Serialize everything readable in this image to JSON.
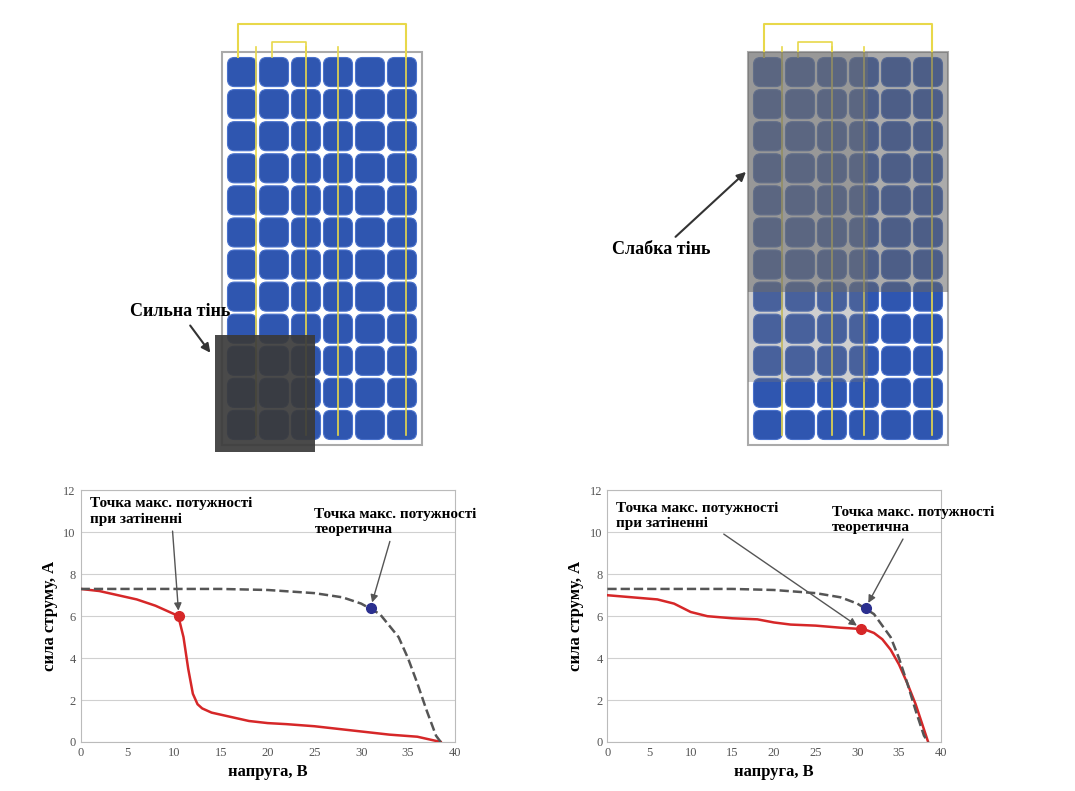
{
  "panels": [
    {
      "label": "Сильна тінь"
    },
    {
      "label": "Слабка тінь"
    }
  ],
  "chart_data": [
    {
      "type": "line",
      "x_label": "напруга, В",
      "y_label": "сила струму, А",
      "xlim": [
        0,
        40
      ],
      "xticks": [
        0,
        5,
        10,
        15,
        20,
        25,
        30,
        35,
        40
      ],
      "ylim": [
        0,
        12
      ],
      "yticks": [
        0,
        2,
        4,
        6,
        8,
        10,
        12
      ],
      "grid": true,
      "series": [
        {
          "color": "#d62728",
          "line_style": "solid",
          "x": [
            0,
            2,
            4,
            6,
            8,
            10,
            10.5,
            11,
            11.5,
            12,
            12.5,
            13,
            14,
            16,
            18,
            20,
            22,
            25,
            28,
            30,
            33,
            36,
            38,
            38.5
          ],
          "values": [
            7.3,
            7.2,
            7.0,
            6.8,
            6.5,
            6.1,
            5.9,
            5.0,
            3.5,
            2.3,
            1.8,
            1.6,
            1.4,
            1.2,
            1.0,
            0.9,
            0.85,
            0.75,
            0.6,
            0.5,
            0.35,
            0.25,
            0.05,
            0.0
          ]
        },
        {
          "color": "#555555",
          "line_style": "dashed",
          "x": [
            0,
            5,
            10,
            15,
            20,
            25,
            28,
            30,
            32,
            34,
            35,
            36,
            37,
            38,
            38.5
          ],
          "values": [
            7.3,
            7.3,
            7.3,
            7.3,
            7.25,
            7.1,
            6.9,
            6.6,
            6.1,
            5.0,
            4.0,
            2.8,
            1.5,
            0.3,
            0.0
          ]
        }
      ],
      "annotations": [
        {
          "text": "Точка макс. потужності\nпри затіненні",
          "x": 10.5,
          "y": 6.0,
          "color": "#d62728"
        },
        {
          "text": "Точка макс. потужності\nтеоретична",
          "x": 31,
          "y": 6.4,
          "color": "#2b2f8f"
        }
      ]
    },
    {
      "type": "line",
      "x_label": "напруга, В",
      "y_label": "сила струму, А",
      "xlim": [
        0,
        40
      ],
      "xticks": [
        0,
        5,
        10,
        15,
        20,
        25,
        30,
        35,
        40
      ],
      "ylim": [
        0,
        12
      ],
      "yticks": [
        0,
        2,
        4,
        6,
        8,
        10,
        12
      ],
      "grid": true,
      "series": [
        {
          "color": "#d62728",
          "line_style": "solid",
          "x": [
            0,
            3,
            6,
            8,
            10,
            12,
            15,
            18,
            20,
            22,
            25,
            28,
            30,
            31,
            32,
            33,
            34,
            35,
            36,
            37,
            38,
            38.5
          ],
          "values": [
            7.0,
            6.9,
            6.8,
            6.6,
            6.2,
            6.0,
            5.9,
            5.85,
            5.7,
            5.6,
            5.55,
            5.45,
            5.4,
            5.35,
            5.2,
            4.9,
            4.4,
            3.7,
            2.8,
            1.8,
            0.6,
            0.0
          ]
        },
        {
          "color": "#555555",
          "line_style": "dashed",
          "x": [
            0,
            5,
            10,
            15,
            20,
            25,
            28,
            30,
            32,
            34,
            35,
            36,
            37,
            38,
            38.5
          ],
          "values": [
            7.3,
            7.3,
            7.3,
            7.3,
            7.25,
            7.1,
            6.9,
            6.6,
            6.1,
            5.0,
            4.0,
            2.8,
            1.5,
            0.3,
            0.0
          ]
        }
      ],
      "annotations": [
        {
          "text": "Точка макс. потужності\nпри затіненні",
          "x": 30.5,
          "y": 5.4,
          "color": "#d62728"
        },
        {
          "text": "Точка макс. потужності\nтеоретична",
          "x": 31,
          "y": 6.4,
          "color": "#2b2f8f"
        }
      ]
    }
  ]
}
